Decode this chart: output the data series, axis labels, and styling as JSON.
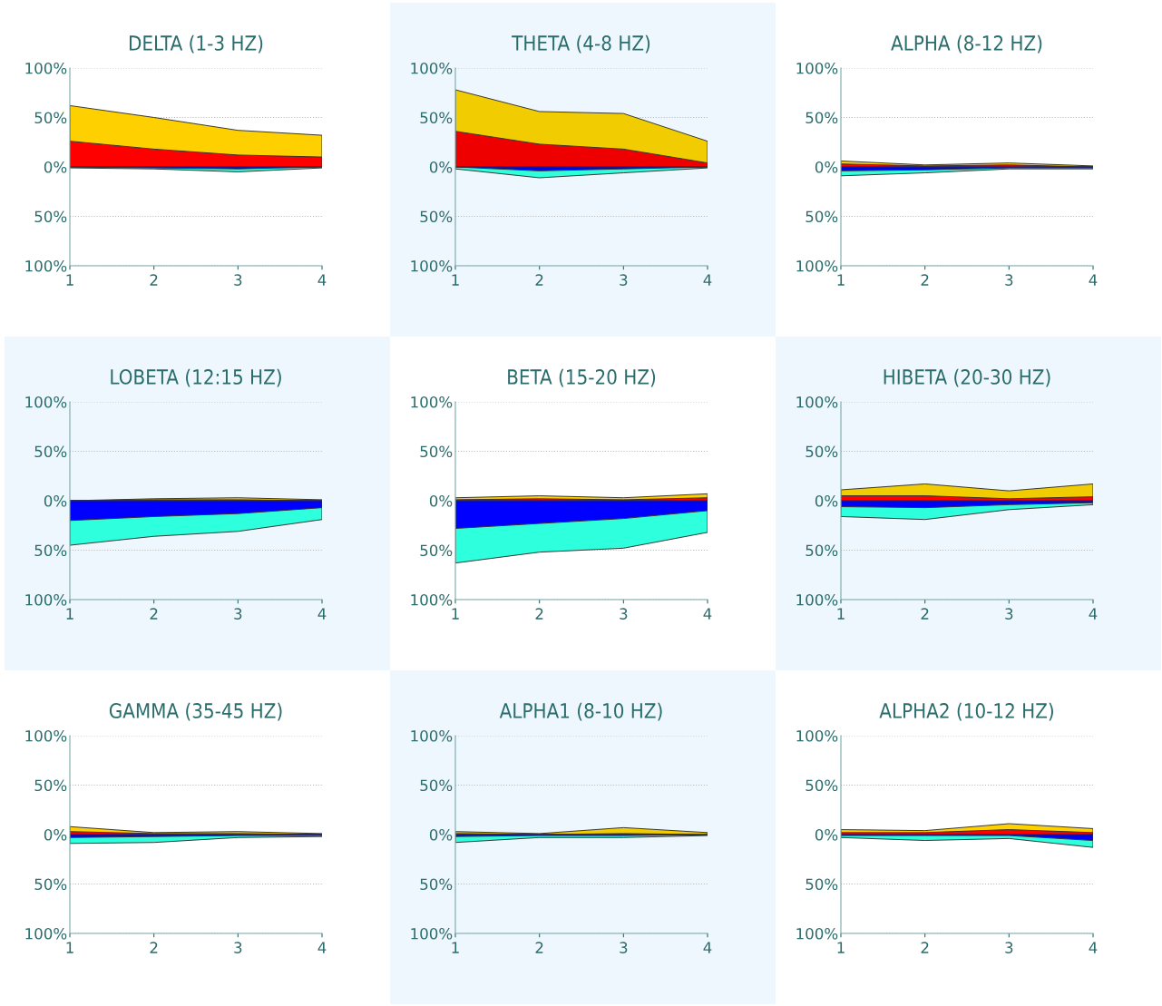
{
  "chart_data": [
    {
      "type": "area",
      "title": "DELTA (1-3 HZ)",
      "x": [
        1,
        2,
        3,
        4
      ],
      "xlim": [
        1,
        4
      ],
      "xticks": [
        1,
        2,
        3,
        4
      ],
      "ylim": [
        -100,
        100
      ],
      "yticks": [
        {
          "value": -100,
          "label": "100%"
        },
        {
          "value": -50,
          "label": "50%"
        },
        {
          "value": 0,
          "label": "0%"
        },
        {
          "value": 50,
          "label": "50%"
        },
        {
          "value": 100,
          "label": "100%"
        }
      ],
      "grid": "y",
      "series": [
        {
          "color": "#ffd000",
          "values": [
            62,
            50,
            37,
            32
          ]
        },
        {
          "color": "#ff0000",
          "values": [
            26,
            18,
            12,
            10
          ]
        },
        {
          "color": "#2effdc",
          "values": [
            -1,
            -2,
            -5,
            -1
          ]
        },
        {
          "color": "#0000ff",
          "values": [
            0,
            -1,
            -2,
            0
          ]
        }
      ]
    },
    {
      "type": "area",
      "title": "THETA (4-8 HZ)",
      "x": [
        1,
        2,
        3,
        4
      ],
      "xlim": [
        1,
        4
      ],
      "xticks": [
        1,
        2,
        3,
        4
      ],
      "ylim": [
        -100,
        100
      ],
      "yticks": [
        {
          "value": -100,
          "label": "100%"
        },
        {
          "value": -50,
          "label": "50%"
        },
        {
          "value": 0,
          "label": "0%"
        },
        {
          "value": 50,
          "label": "50%"
        },
        {
          "value": 100,
          "label": "100%"
        }
      ],
      "grid": "y",
      "series": [
        {
          "color": "#f0cc00",
          "values": [
            78,
            56,
            54,
            26
          ]
        },
        {
          "color": "#ee0000",
          "values": [
            36,
            23,
            18,
            4
          ]
        },
        {
          "color": "#2effdc",
          "values": [
            -2,
            -11,
            -6,
            -1
          ]
        },
        {
          "color": "#0000ff",
          "values": [
            0,
            -4,
            -2,
            0
          ]
        }
      ]
    },
    {
      "type": "area",
      "title": "ALPHA (8-12 HZ)",
      "x": [
        1,
        2,
        3,
        4
      ],
      "xlim": [
        1,
        4
      ],
      "xticks": [
        1,
        2,
        3,
        4
      ],
      "ylim": [
        -100,
        100
      ],
      "yticks": [
        {
          "value": -100,
          "label": "100%"
        },
        {
          "value": -50,
          "label": "50%"
        },
        {
          "value": 0,
          "label": "0%"
        },
        {
          "value": 50,
          "label": "50%"
        },
        {
          "value": 100,
          "label": "100%"
        }
      ],
      "grid": "y",
      "series": [
        {
          "color": "#ffd000",
          "values": [
            6,
            2,
            4,
            1
          ]
        },
        {
          "color": "#ff0000",
          "values": [
            3,
            1,
            2,
            0
          ]
        },
        {
          "color": "#2effdc",
          "values": [
            -9,
            -6,
            -2,
            -2
          ]
        },
        {
          "color": "#0000ff",
          "values": [
            -4,
            -3,
            -1,
            -1
          ]
        }
      ]
    },
    {
      "type": "area",
      "title": "LOBETA (12:15 HZ)",
      "x": [
        1,
        2,
        3,
        4
      ],
      "xlim": [
        1,
        4
      ],
      "xticks": [
        1,
        2,
        3,
        4
      ],
      "ylim": [
        -100,
        100
      ],
      "yticks": [
        {
          "value": -100,
          "label": "100%"
        },
        {
          "value": -50,
          "label": "50%"
        },
        {
          "value": 0,
          "label": "0%"
        },
        {
          "value": 50,
          "label": "50%"
        },
        {
          "value": 100,
          "label": "100%"
        }
      ],
      "grid": "y",
      "series": [
        {
          "color": "#ffd000",
          "values": [
            0,
            2,
            3,
            1
          ]
        },
        {
          "color": "#ff0000",
          "values": [
            0,
            1,
            1,
            0
          ]
        },
        {
          "color": "#2effdc",
          "values": [
            -45,
            -36,
            -31,
            -19
          ]
        },
        {
          "color": "#0000ff",
          "values": [
            -20,
            -16,
            -13,
            -7
          ]
        }
      ]
    },
    {
      "type": "area",
      "title": "BETA (15-20 HZ)",
      "x": [
        1,
        2,
        3,
        4
      ],
      "xlim": [
        1,
        4
      ],
      "xticks": [
        1,
        2,
        3,
        4
      ],
      "ylim": [
        -100,
        100
      ],
      "yticks": [
        {
          "value": -100,
          "label": "100%"
        },
        {
          "value": -50,
          "label": "50%"
        },
        {
          "value": 0,
          "label": "0%"
        },
        {
          "value": 50,
          "label": "50%"
        },
        {
          "value": 100,
          "label": "100%"
        }
      ],
      "grid": "y",
      "series": [
        {
          "color": "#ffd000",
          "values": [
            3,
            5,
            3,
            7
          ]
        },
        {
          "color": "#ff0000",
          "values": [
            1,
            2,
            1,
            3
          ]
        },
        {
          "color": "#2effdc",
          "values": [
            -63,
            -52,
            -48,
            -32
          ]
        },
        {
          "color": "#0000ff",
          "values": [
            -28,
            -23,
            -18,
            -10
          ]
        }
      ]
    },
    {
      "type": "area",
      "title": "HIBETA (20-30 HZ)",
      "x": [
        1,
        2,
        3,
        4
      ],
      "xlim": [
        1,
        4
      ],
      "xticks": [
        1,
        2,
        3,
        4
      ],
      "ylim": [
        -100,
        100
      ],
      "yticks": [
        {
          "value": -100,
          "label": "100%"
        },
        {
          "value": -50,
          "label": "50%"
        },
        {
          "value": 0,
          "label": "0%"
        },
        {
          "value": 50,
          "label": "50%"
        },
        {
          "value": 100,
          "label": "100%"
        }
      ],
      "grid": "y",
      "series": [
        {
          "color": "#f0cc00",
          "values": [
            11,
            17,
            10,
            17
          ]
        },
        {
          "color": "#ff0000",
          "values": [
            5,
            5,
            2,
            4
          ]
        },
        {
          "color": "#2effdc",
          "values": [
            -16,
            -19,
            -9,
            -4
          ]
        },
        {
          "color": "#0000ff",
          "values": [
            -6,
            -7,
            -4,
            -2
          ]
        }
      ]
    },
    {
      "type": "area",
      "title": "GAMMA (35-45 HZ)",
      "x": [
        1,
        2,
        3,
        4
      ],
      "xlim": [
        1,
        4
      ],
      "xticks": [
        1,
        2,
        3,
        4
      ],
      "ylim": [
        -100,
        100
      ],
      "yticks": [
        {
          "value": -100,
          "label": "100%"
        },
        {
          "value": -50,
          "label": "50%"
        },
        {
          "value": 0,
          "label": "0%"
        },
        {
          "value": 50,
          "label": "50%"
        },
        {
          "value": 100,
          "label": "100%"
        }
      ],
      "grid": "y",
      "series": [
        {
          "color": "#ffd000",
          "values": [
            8,
            2,
            3,
            1
          ]
        },
        {
          "color": "#ff0000",
          "values": [
            3,
            1,
            1,
            0
          ]
        },
        {
          "color": "#2effdc",
          "values": [
            -9,
            -8,
            -3,
            -2
          ]
        },
        {
          "color": "#0000ff",
          "values": [
            -3,
            -2,
            -1,
            -1
          ]
        }
      ]
    },
    {
      "type": "area",
      "title": "ALPHA1 (8-10 HZ)",
      "x": [
        1,
        2,
        3,
        4
      ],
      "xlim": [
        1,
        4
      ],
      "xticks": [
        1,
        2,
        3,
        4
      ],
      "ylim": [
        -100,
        100
      ],
      "yticks": [
        {
          "value": -100,
          "label": "100%"
        },
        {
          "value": -50,
          "label": "50%"
        },
        {
          "value": 0,
          "label": "0%"
        },
        {
          "value": 50,
          "label": "50%"
        },
        {
          "value": 100,
          "label": "100%"
        }
      ],
      "grid": "y",
      "series": [
        {
          "color": "#f0cc00",
          "values": [
            3,
            1,
            7,
            2
          ]
        },
        {
          "color": "#ff0000",
          "values": [
            1,
            0,
            1,
            0
          ]
        },
        {
          "color": "#2effdc",
          "values": [
            -8,
            -3,
            -3,
            -1
          ]
        },
        {
          "color": "#0000ff",
          "values": [
            -2,
            -1,
            -1,
            0
          ]
        }
      ]
    },
    {
      "type": "area",
      "title": "ALPHA2 (10-12 HZ)",
      "x": [
        1,
        2,
        3,
        4
      ],
      "xlim": [
        1,
        4
      ],
      "xticks": [
        1,
        2,
        3,
        4
      ],
      "ylim": [
        -100,
        100
      ],
      "yticks": [
        {
          "value": -100,
          "label": "100%"
        },
        {
          "value": -50,
          "label": "50%"
        },
        {
          "value": 0,
          "label": "0%"
        },
        {
          "value": 50,
          "label": "50%"
        },
        {
          "value": 100,
          "label": "100%"
        }
      ],
      "grid": "y",
      "series": [
        {
          "color": "#ffd000",
          "values": [
            5,
            4,
            11,
            6
          ]
        },
        {
          "color": "#ff0000",
          "values": [
            2,
            2,
            5,
            2
          ]
        },
        {
          "color": "#2effdc",
          "values": [
            -3,
            -6,
            -4,
            -13
          ]
        },
        {
          "color": "#0000ff",
          "values": [
            -1,
            -1,
            -1,
            -6
          ]
        }
      ]
    }
  ]
}
